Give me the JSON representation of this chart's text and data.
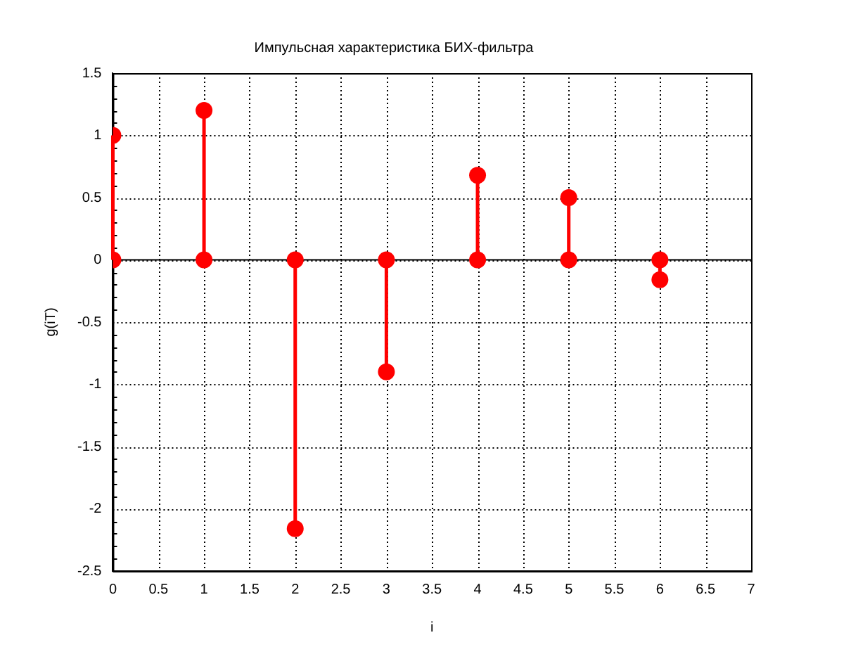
{
  "chart_data": {
    "type": "lollipop",
    "title": "Импульсная характеристика БИХ-фильтра",
    "xlabel": "i",
    "ylabel": "g(iT)",
    "x": [
      0,
      1,
      2,
      3,
      4,
      5,
      6
    ],
    "series": [
      {
        "color": "#ff0000",
        "values": [
          1,
          1.2,
          -2.16,
          -0.9,
          0.68,
          0.5,
          -0.16
        ]
      },
      {
        "type": "scatter",
        "color": "#ff0000",
        "values": [
          0,
          0,
          0,
          0,
          0,
          0,
          0
        ]
      }
    ],
    "xlim": [
      0,
      7
    ],
    "xticks": [
      0,
      0.5,
      1,
      1.5,
      2,
      2.5,
      3,
      3.5,
      4,
      4.5,
      5,
      5.5,
      6,
      6.5,
      7
    ],
    "ylim": [
      -2.5,
      1.5
    ],
    "yticks": [
      -2.5,
      -2,
      -1.5,
      -1,
      -0.5,
      0,
      0.5,
      1,
      1.5
    ],
    "ref_lines": [
      {
        "axis": "y",
        "value": 0,
        "color": "#000000"
      }
    ],
    "grid": true,
    "marker": "circle",
    "legend": false
  }
}
